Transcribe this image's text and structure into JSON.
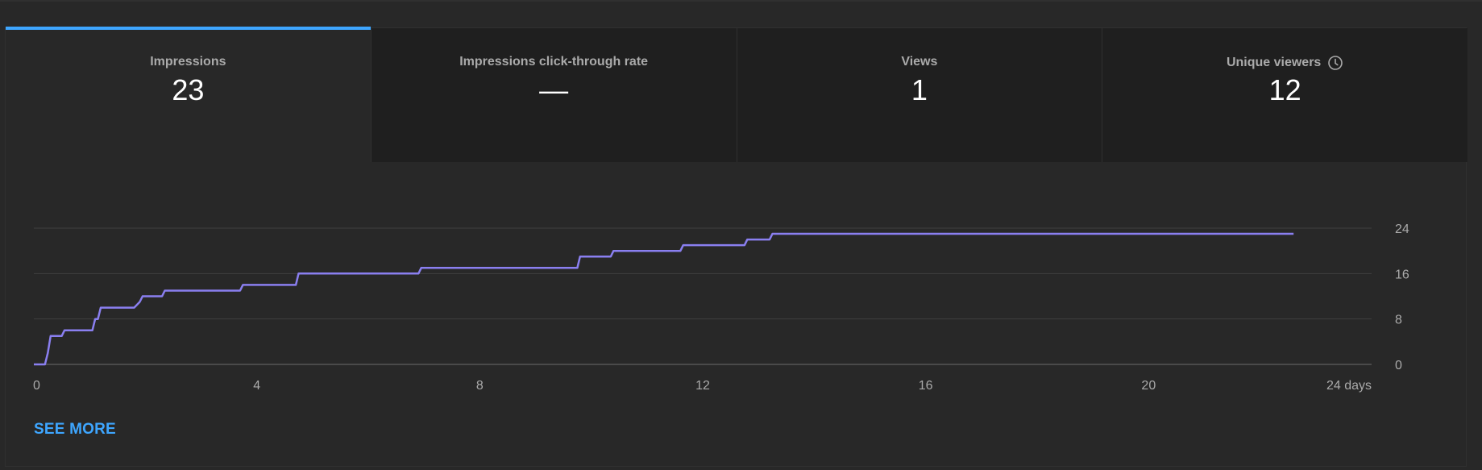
{
  "tabs": [
    {
      "label": "Impressions",
      "value": "23",
      "active": true
    },
    {
      "label": "Impressions click-through rate",
      "value": "—",
      "active": false
    },
    {
      "label": "Views",
      "value": "1",
      "active": false
    },
    {
      "label": "Unique viewers",
      "value": "12",
      "active": false,
      "icon": "clock-icon"
    }
  ],
  "see_more_label": "SEE MORE",
  "colors": {
    "line": "#8a7ff0",
    "accent": "#3ea6ff",
    "grid": "#3f3f3f",
    "tick_text": "#aaaaaa"
  },
  "chart_data": {
    "type": "line",
    "title": "",
    "xlabel": "",
    "ylabel": "",
    "xlim": [
      0,
      24
    ],
    "ylim": [
      0,
      24
    ],
    "x_ticks": [
      "0",
      "4",
      "8",
      "12",
      "16",
      "20",
      "24 days"
    ],
    "y_ticks": [
      "0",
      "8",
      "16",
      "24"
    ],
    "y_axis_side": "right",
    "grid": true,
    "series": [
      {
        "x": [
          0,
          0.2,
          0.25,
          0.3,
          0.5,
          0.55,
          1.05,
          1.1,
          1.15,
          1.2,
          1.8,
          1.9,
          1.95,
          2.3,
          2.35,
          3.7,
          3.75,
          4.7,
          4.75,
          6.9,
          6.95,
          9.75,
          9.8,
          10.35,
          10.4,
          11.6,
          11.65,
          12.75,
          12.8,
          13.2,
          13.25,
          22.6
        ],
        "y": [
          0,
          0,
          2,
          5,
          5,
          6,
          6,
          8,
          8,
          10,
          10,
          11,
          12,
          12,
          13,
          13,
          14,
          14,
          16,
          16,
          17,
          17,
          19,
          19,
          20,
          20,
          21,
          21,
          22,
          22,
          23,
          23
        ]
      }
    ]
  }
}
